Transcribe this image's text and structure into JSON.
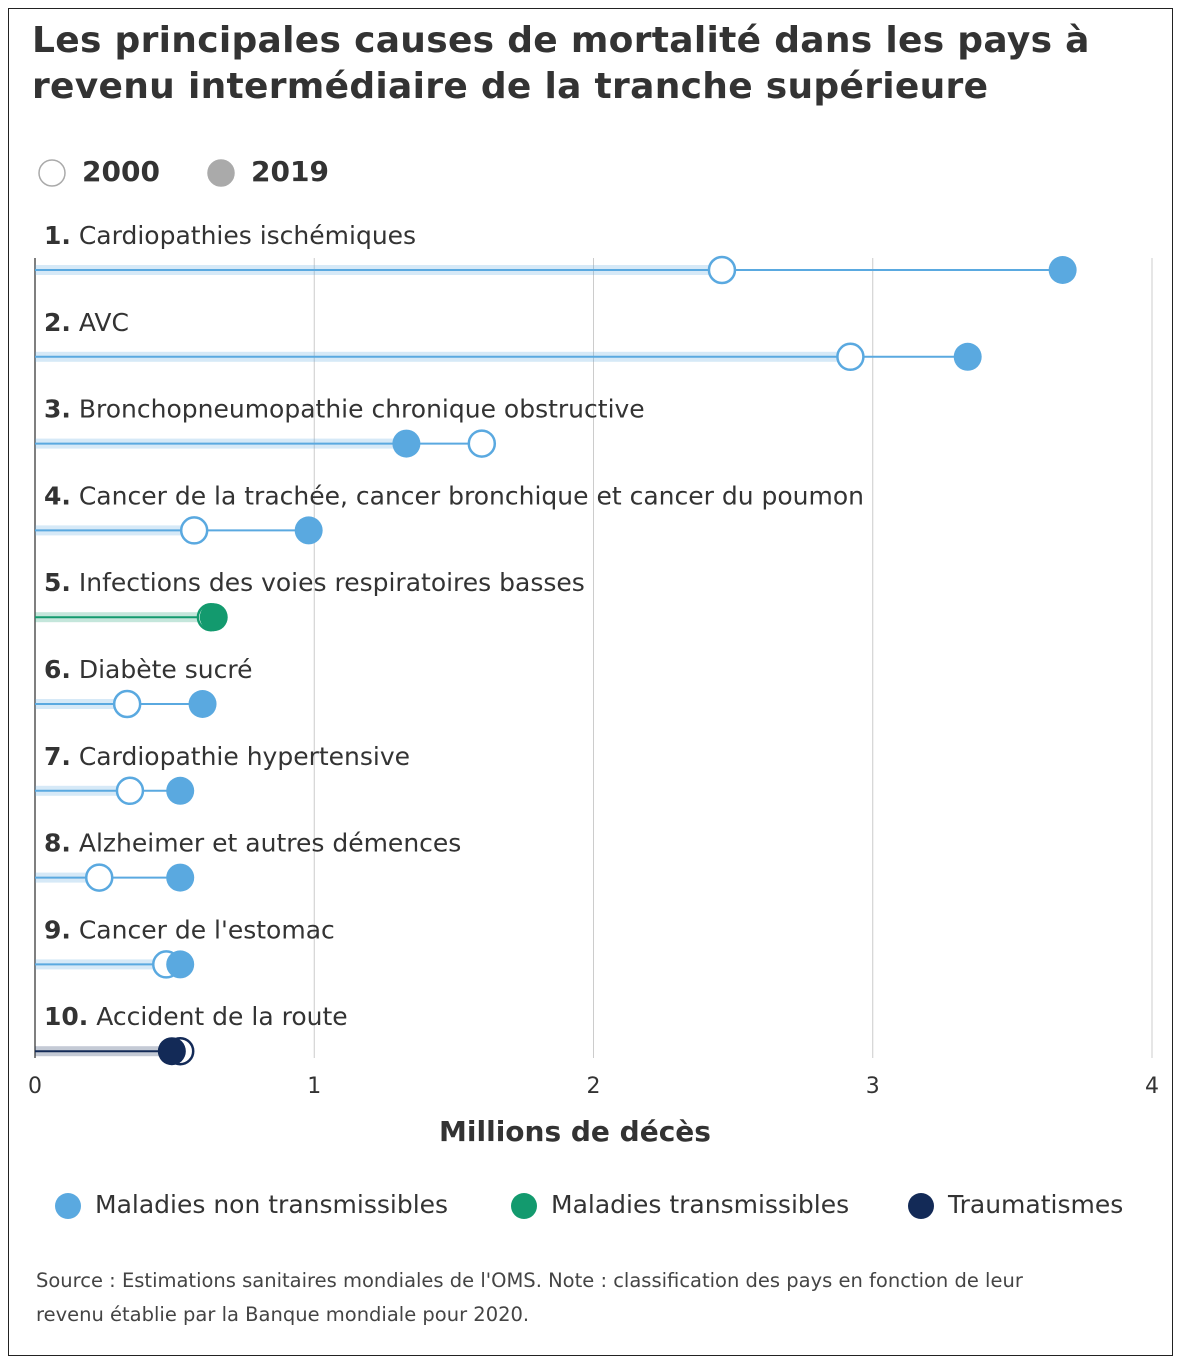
{
  "chart_data": {
    "type": "dumbbell",
    "title": "Les principales causes de mortalité dans les pays à revenu intermédiaire de la tranche supérieure",
    "ranks": [
      "1.",
      "2.",
      "3.",
      "4.",
      "5.",
      "6.",
      "7.",
      "8.",
      "9.",
      "10."
    ],
    "categories": [
      "Cardiopathies ischémiques",
      "AVC",
      "Bronchopneumopathie chronique obstructive",
      "Cancer de la trachée, cancer bronchique et cancer du poumon",
      "Infections des voies respiratoires basses",
      "Diabète sucré",
      "Cardiopathie hypertensive",
      "Alzheimer et autres démences",
      "Cancer de l'estomac",
      "Accident de la route"
    ],
    "series": [
      {
        "name": "2000",
        "marker": "open",
        "values": [
          2.46,
          2.92,
          1.6,
          0.57,
          0.63,
          0.33,
          0.34,
          0.23,
          0.47,
          0.52
        ]
      },
      {
        "name": "2019",
        "marker": "filled",
        "values": [
          3.68,
          3.34,
          1.33,
          0.98,
          0.64,
          0.6,
          0.52,
          0.52,
          0.52,
          0.49
        ]
      }
    ],
    "groups": [
      {
        "name": "Maladies non transmissibles",
        "color": "#5aa9e0"
      },
      {
        "name": "Maladies transmissibles",
        "color": "#139a6e"
      },
      {
        "name": "Traumatismes",
        "color": "#132a57"
      }
    ],
    "category_groups": [
      0,
      0,
      0,
      0,
      1,
      0,
      0,
      0,
      0,
      2
    ],
    "xlabel": "Millions de décès",
    "xlim": [
      0,
      4
    ],
    "xticks": [
      0,
      1,
      2,
      3,
      4
    ],
    "grid": true,
    "note": "Source : Estimations sanitaires mondiales de l'OMS. Note : classification des pays en fonction de leur revenu établie par la Banque mondiale pour 2020."
  }
}
